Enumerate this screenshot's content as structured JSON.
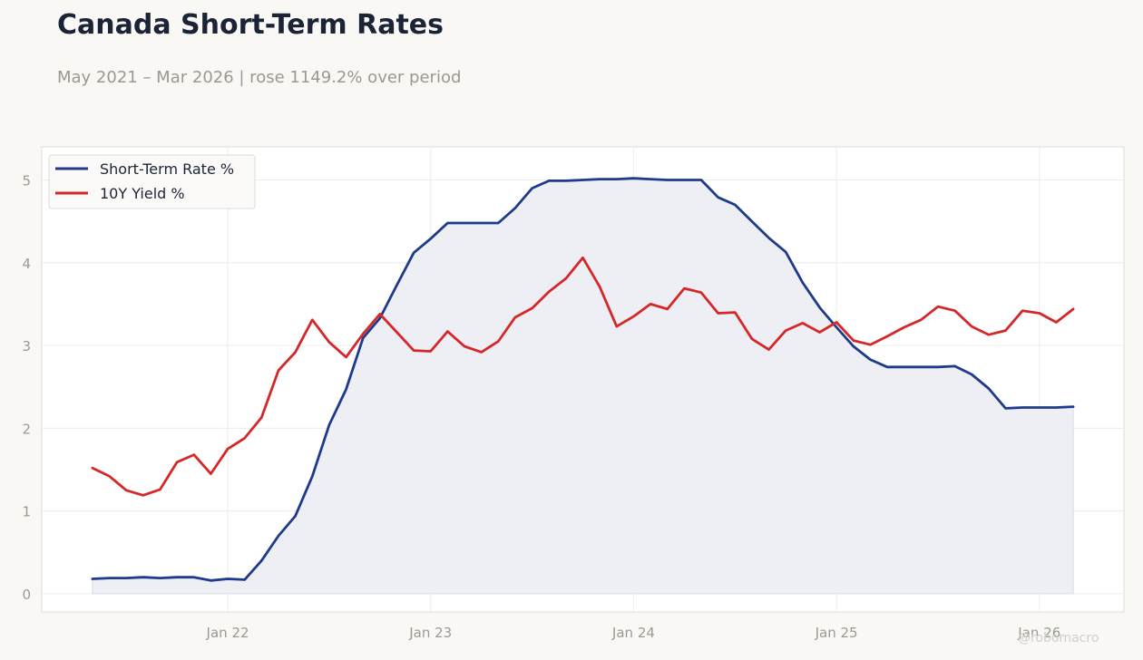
{
  "header": {
    "title": "Canada Short-Term Rates",
    "subtitle": "May 2021 – Mar 2026 | rose 1149.2% over period",
    "watermark": "@robomacro"
  },
  "colors": {
    "short_rate": "#1e3a8a",
    "yield_10y": "#d62728",
    "fill": "#eeeef5",
    "grid": "#ececec",
    "frame": "#dddcd6"
  },
  "chart_data": {
    "type": "line",
    "title": "Canada Short-Term Rates",
    "subtitle": "May 2021 – Mar 2026 | rose 1149.2% over period",
    "xlabel": "",
    "ylabel": "",
    "x_ticks": [
      {
        "label": "Jan 22",
        "date": "2022-01"
      },
      {
        "label": "Jan 23",
        "date": "2023-01"
      },
      {
        "label": "Jan 24",
        "date": "2024-01"
      },
      {
        "label": "Jan 25",
        "date": "2025-01"
      },
      {
        "label": "Jan 26",
        "date": "2026-01"
      }
    ],
    "y_ticks": [
      0,
      1,
      2,
      3,
      4,
      5
    ],
    "xlim": [
      "2021-02",
      "2026-06"
    ],
    "ylim": [
      -0.22,
      5.4
    ],
    "grid": true,
    "legend_position": "top-left",
    "x": [
      "2021-05",
      "2021-06",
      "2021-07",
      "2021-08",
      "2021-09",
      "2021-10",
      "2021-11",
      "2021-12",
      "2022-01",
      "2022-02",
      "2022-03",
      "2022-04",
      "2022-05",
      "2022-06",
      "2022-07",
      "2022-08",
      "2022-09",
      "2022-10",
      "2022-11",
      "2022-12",
      "2023-01",
      "2023-02",
      "2023-03",
      "2023-04",
      "2023-05",
      "2023-06",
      "2023-07",
      "2023-08",
      "2023-09",
      "2023-10",
      "2023-11",
      "2023-12",
      "2024-01",
      "2024-02",
      "2024-03",
      "2024-04",
      "2024-05",
      "2024-06",
      "2024-07",
      "2024-08",
      "2024-09",
      "2024-10",
      "2024-11",
      "2024-12",
      "2025-01",
      "2025-02",
      "2025-03",
      "2025-04",
      "2025-05",
      "2025-06",
      "2025-07",
      "2025-08",
      "2025-09",
      "2025-10",
      "2025-11",
      "2025-12",
      "2026-01",
      "2026-02",
      "2026-03"
    ],
    "series": [
      {
        "name": "Short-Term Rate %",
        "color": "#1e3a8a",
        "filled": true,
        "values": [
          0.18,
          0.19,
          0.19,
          0.2,
          0.19,
          0.2,
          0.2,
          0.16,
          0.18,
          0.17,
          0.4,
          0.7,
          0.94,
          1.42,
          2.04,
          2.47,
          3.09,
          3.33,
          3.73,
          4.12,
          4.29,
          4.48,
          4.48,
          4.48,
          4.48,
          4.66,
          4.9,
          4.99,
          4.99,
          5.0,
          5.01,
          5.01,
          5.02,
          5.01,
          5.0,
          5.0,
          5.0,
          4.79,
          4.7,
          4.5,
          4.3,
          4.13,
          3.76,
          3.46,
          3.22,
          2.99,
          2.83,
          2.74,
          2.74,
          2.74,
          2.74,
          2.75,
          2.65,
          2.48,
          2.24,
          2.25,
          2.25,
          2.25,
          2.26
        ]
      },
      {
        "name": "10Y Yield %",
        "color": "#d62728",
        "filled": false,
        "values": [
          1.52,
          1.42,
          1.25,
          1.19,
          1.26,
          1.59,
          1.68,
          1.45,
          1.75,
          1.88,
          2.13,
          2.7,
          2.92,
          3.31,
          3.04,
          2.86,
          3.14,
          3.38,
          3.16,
          2.94,
          2.93,
          3.17,
          2.99,
          2.92,
          3.05,
          3.34,
          3.45,
          3.65,
          3.81,
          4.06,
          3.71,
          3.23,
          3.35,
          3.5,
          3.44,
          3.69,
          3.64,
          3.39,
          3.4,
          3.08,
          2.95,
          3.18,
          3.27,
          3.16,
          3.28,
          3.06,
          3.01,
          3.11,
          3.22,
          3.31,
          3.47,
          3.42,
          3.23,
          3.13,
          3.18,
          3.42,
          3.39,
          3.28,
          3.44
        ]
      }
    ]
  }
}
